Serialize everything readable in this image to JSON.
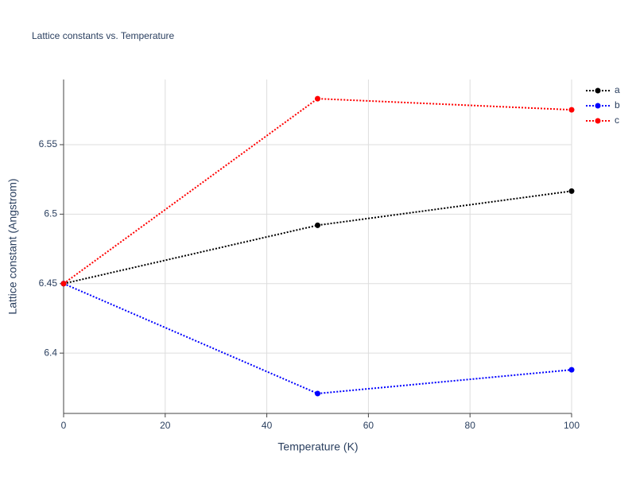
{
  "chart_data": {
    "type": "line",
    "title": "Lattice constants vs. Temperature",
    "x_label": "Temperature (K)",
    "y_label": "Lattice constant (Angstrom)",
    "x": [
      0,
      50,
      100
    ],
    "series": [
      {
        "name": "a",
        "color": "#000000",
        "values": [
          6.45,
          6.492,
          6.5166
        ]
      },
      {
        "name": "b",
        "color": "#0000ff",
        "values": [
          6.45,
          6.3709,
          6.388
        ]
      },
      {
        "name": "c",
        "color": "#ff0000",
        "values": [
          6.45,
          6.5831,
          6.5751
        ]
      }
    ],
    "xlim": [
      0,
      100
    ],
    "xticks": [
      0,
      20,
      40,
      60,
      80,
      100
    ],
    "ylim": [
      6.3566,
      6.5969
    ],
    "yticks": [
      6.4,
      6.45,
      6.5,
      6.55
    ],
    "grid": true,
    "legend": "top-right"
  }
}
